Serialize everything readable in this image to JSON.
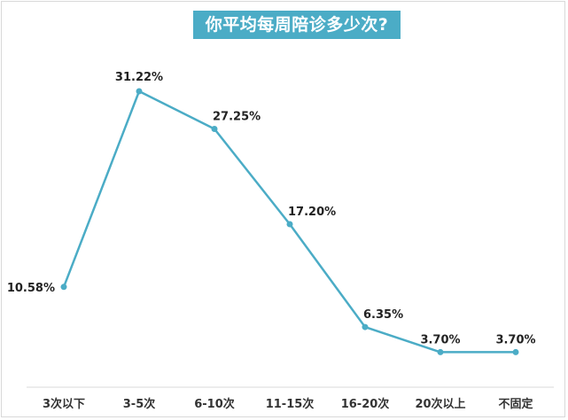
{
  "chart_data": {
    "type": "line",
    "title": "你平均每周陪诊多少次?",
    "categories": [
      "3次以下",
      "3-5次",
      "6-10次",
      "11-15次",
      "16-20次",
      "20次以上",
      "不固定"
    ],
    "values": [
      10.58,
      31.22,
      27.25,
      17.2,
      6.35,
      3.7,
      3.7
    ],
    "data_labels": [
      "10.58%",
      "31.22%",
      "27.25%",
      "17.20%",
      "6.35%",
      "3.70%",
      "3.70%"
    ],
    "xlabel": "",
    "ylabel": "",
    "grid": false,
    "legend": "none",
    "line_color": "#4bacc6",
    "title_bg": "#4bacc6"
  }
}
